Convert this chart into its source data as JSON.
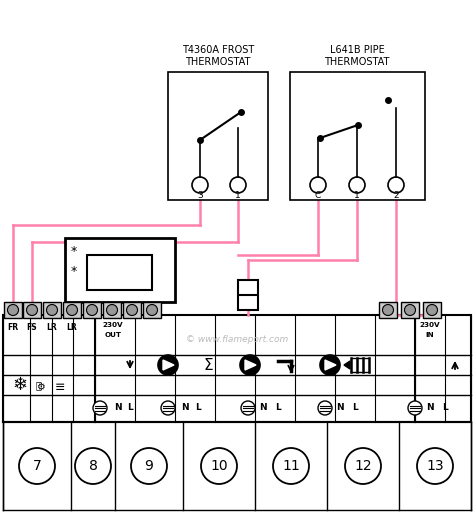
{
  "bg_color": "#ffffff",
  "wire_color": "#ff80aa",
  "box_color": "#000000",
  "gray_term": "#cccccc",
  "frost_label": "T4360A FROST\nTHERMOSTAT",
  "pipe_label": "L641B PIPE\nTHERMOSTAT",
  "watermark": "© www.flameport.com",
  "section_numbers": [
    "7",
    "8",
    "9",
    "10",
    "11",
    "12",
    "13"
  ],
  "figw": 4.74,
  "figh": 5.15,
  "dpi": 100
}
